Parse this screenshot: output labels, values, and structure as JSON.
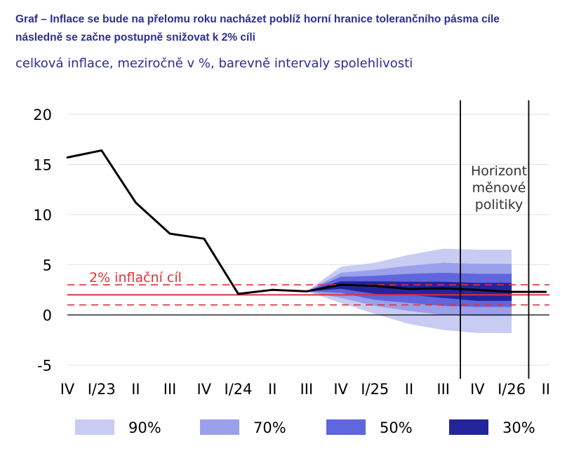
{
  "header": {
    "title_line1": "Graf – Inflace se bude na přelomu roku nacházet poblíž horní hranice tolerančního pásma cíle",
    "title_line2": "následně se začne postupně snižovat k 2% cíli",
    "subtitle": "celková inflace, meziročně v %, barevně intervaly spolehlivosti"
  },
  "chart_data": {
    "type": "line",
    "x": [
      "IV",
      "I/23",
      "II",
      "III",
      "IV",
      "I/24",
      "II",
      "III",
      "IV",
      "I/25",
      "II",
      "III",
      "IV",
      "I/26",
      "II"
    ],
    "ylim": [
      -5,
      20
    ],
    "yticks": [
      -5,
      0,
      5,
      10,
      15,
      20
    ],
    "grid": true,
    "series": [
      {
        "values": [
          15.7,
          16.4,
          11.2,
          8.1,
          7.6,
          2.1,
          2.5,
          2.35,
          3.0,
          2.9,
          2.6,
          2.65,
          2.5,
          2.3,
          2.3
        ],
        "color": "#000000"
      }
    ],
    "target": {
      "label": "2% inflační cíl",
      "value": 2,
      "band": [
        1,
        3
      ],
      "color": "#e0303a"
    },
    "fan_start": 7,
    "fan_bands": [
      {
        "name": "90%",
        "color": "#c8ccf3",
        "upper": [
          2.35,
          4.8,
          5.2,
          6.0,
          6.6,
          6.5,
          6.5
        ],
        "lower": [
          2.35,
          1.2,
          0.1,
          -0.9,
          -1.5,
          -1.8,
          -1.8
        ]
      },
      {
        "name": "70%",
        "color": "#9aa0ea",
        "upper": [
          2.35,
          4.2,
          4.5,
          4.9,
          5.2,
          5.1,
          5.1
        ],
        "lower": [
          2.35,
          1.7,
          0.9,
          0.4,
          0.0,
          -0.1,
          -0.1
        ]
      },
      {
        "name": "50%",
        "color": "#6066de",
        "upper": [
          2.35,
          3.8,
          3.9,
          4.1,
          4.2,
          4.1,
          4.1
        ],
        "lower": [
          2.35,
          2.2,
          1.5,
          1.2,
          0.9,
          0.8,
          0.8
        ]
      },
      {
        "name": "30%",
        "color": "#24249c",
        "upper": [
          2.35,
          3.35,
          3.35,
          3.3,
          3.3,
          3.2,
          3.2
        ],
        "lower": [
          2.35,
          2.6,
          2.1,
          2.0,
          1.7,
          1.4,
          1.4
        ]
      }
    ],
    "horizon": {
      "label_lines": [
        "Horizont",
        "měnové",
        "politiky"
      ],
      "x_from": 11.5,
      "x_to": 13.5
    },
    "legend": {
      "placement": "bottom",
      "entries": [
        "90%",
        "70%",
        "50%",
        "30%"
      ]
    }
  }
}
